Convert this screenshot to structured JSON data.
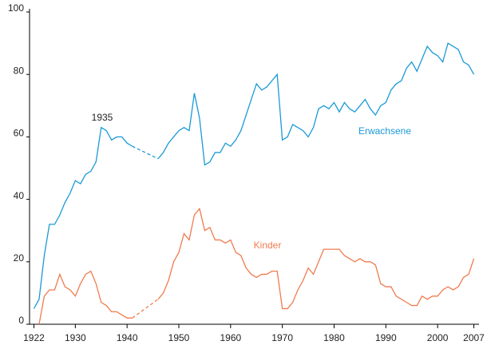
{
  "chart_data": {
    "type": "line",
    "x": [
      1922,
      1923,
      1924,
      1925,
      1926,
      1927,
      1928,
      1929,
      1930,
      1931,
      1932,
      1933,
      1934,
      1935,
      1936,
      1937,
      1938,
      1939,
      1940,
      1941,
      1942,
      1943,
      1944,
      1945,
      1946,
      1947,
      1948,
      1949,
      1950,
      1951,
      1952,
      1953,
      1954,
      1955,
      1956,
      1957,
      1958,
      1959,
      1960,
      1961,
      1962,
      1963,
      1964,
      1965,
      1966,
      1967,
      1968,
      1969,
      1970,
      1971,
      1972,
      1973,
      1974,
      1975,
      1976,
      1977,
      1978,
      1979,
      1980,
      1981,
      1982,
      1983,
      1984,
      1985,
      1986,
      1987,
      1988,
      1989,
      1990,
      1991,
      1992,
      1993,
      1994,
      1995,
      1996,
      1997,
      1998,
      1999,
      2000,
      2001,
      2002,
      2003,
      2004,
      2005,
      2006,
      2007
    ],
    "series": [
      {
        "name": "Erwachsene",
        "color": "#1a9ad6",
        "values": [
          5,
          8,
          22,
          32,
          32,
          35,
          39,
          42,
          46,
          45,
          48,
          49,
          52,
          63,
          62,
          59,
          60,
          60,
          58,
          57,
          null,
          null,
          null,
          null,
          53,
          55,
          58,
          60,
          62,
          63,
          62,
          74,
          66,
          51,
          52,
          55,
          55,
          58,
          57,
          59,
          62,
          67,
          72,
          77,
          75,
          76,
          78,
          80,
          59,
          60,
          64,
          63,
          62,
          60,
          63,
          69,
          70,
          69,
          71,
          68,
          71,
          69,
          68,
          70,
          72,
          69,
          67,
          70,
          71,
          75,
          77,
          78,
          82,
          84,
          81,
          85,
          89,
          87,
          86,
          84,
          90,
          89,
          88,
          84,
          83,
          80
        ]
      },
      {
        "name": "Kinder",
        "color": "#f07b4f",
        "values": [
          null,
          0,
          9,
          11,
          11,
          16,
          12,
          11,
          9,
          13,
          16,
          17,
          13,
          7,
          6,
          4,
          4,
          3,
          2,
          2,
          null,
          null,
          null,
          null,
          8,
          10,
          14,
          20,
          23,
          29,
          27,
          35,
          37,
          30,
          31,
          27,
          27,
          26,
          27,
          23,
          22,
          18,
          16,
          15,
          16,
          16,
          17,
          17,
          5,
          5,
          7,
          11,
          14,
          18,
          16,
          20,
          24,
          24,
          24,
          24,
          22,
          21,
          20,
          21,
          20,
          20,
          19,
          13,
          12,
          12,
          9,
          8,
          7,
          6,
          6,
          9,
          8,
          9,
          9,
          11,
          12,
          11,
          12,
          15,
          16,
          21
        ]
      }
    ],
    "annotations": [
      "1935"
    ],
    "gap_line": "dashed",
    "xlim": [
      1921,
      2008
    ],
    "xticks": [
      1922,
      1930,
      1940,
      1950,
      1960,
      1970,
      1980,
      1990,
      2000,
      2007
    ],
    "ylim": [
      0,
      100
    ],
    "yticks": [
      0,
      20,
      40,
      60,
      80,
      100
    ],
    "grid": false
  }
}
